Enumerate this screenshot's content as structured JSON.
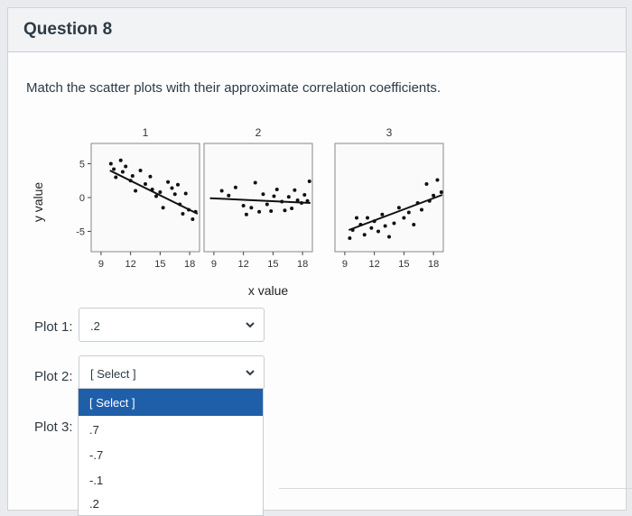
{
  "question": {
    "title": "Question 8",
    "prompt": "Match the scatter plots with their approximate correlation coefficients."
  },
  "chart_data": {
    "type": "scatter",
    "ylabel": "y value",
    "xlabel": "x value",
    "ylim": [
      -8,
      8
    ],
    "yticks": [
      "5",
      "0",
      "-5"
    ],
    "xticks": [
      "9",
      "12",
      "15",
      "18"
    ],
    "panels": [
      {
        "label": "1",
        "xlim": [
          8,
          19
        ],
        "points": [
          [
            10,
            5
          ],
          [
            10.3,
            4.2
          ],
          [
            10.5,
            3
          ],
          [
            11,
            5.5
          ],
          [
            11.2,
            3.8
          ],
          [
            11.5,
            4.6
          ],
          [
            12,
            2.5
          ],
          [
            12.2,
            3.2
          ],
          [
            12.5,
            1
          ],
          [
            13,
            4
          ],
          [
            13.5,
            2
          ],
          [
            14,
            3.1
          ],
          [
            14.2,
            1.2
          ],
          [
            14.6,
            0.2
          ],
          [
            15,
            0.8
          ],
          [
            15.3,
            -1.5
          ],
          [
            15.8,
            2.3
          ],
          [
            16.2,
            1.4
          ],
          [
            16.5,
            0.5
          ],
          [
            16.8,
            1.9
          ],
          [
            17,
            -1
          ],
          [
            17.3,
            -2.4
          ],
          [
            17.6,
            0.6
          ],
          [
            17.9,
            -1.8
          ],
          [
            18.3,
            -3.2
          ],
          [
            18.6,
            -2.1
          ]
        ],
        "trend": [
          [
            9.9,
            4
          ],
          [
            18.8,
            -2.4
          ]
        ]
      },
      {
        "label": "2",
        "xlim": [
          8,
          19
        ],
        "points": [
          [
            9.8,
            1
          ],
          [
            10.5,
            0.3
          ],
          [
            11.2,
            1.5
          ],
          [
            12,
            -1.2
          ],
          [
            12.3,
            -2.5
          ],
          [
            12.8,
            -1.5
          ],
          [
            13.2,
            2.2
          ],
          [
            13.6,
            -2.1
          ],
          [
            14,
            0.5
          ],
          [
            14.4,
            -1
          ],
          [
            14.8,
            -2
          ],
          [
            15.1,
            0.2
          ],
          [
            15.4,
            1.2
          ],
          [
            15.9,
            -0.6
          ],
          [
            16.2,
            -1.9
          ],
          [
            16.6,
            0.1
          ],
          [
            16.9,
            -1.6
          ],
          [
            17.2,
            1.1
          ],
          [
            17.5,
            -0.4
          ],
          [
            17.9,
            -0.8
          ],
          [
            18.2,
            0.4
          ],
          [
            18.5,
            -0.5
          ],
          [
            18.7,
            2.4
          ]
        ],
        "trend": [
          [
            8.6,
            -0.1
          ],
          [
            18.8,
            -0.8
          ]
        ]
      },
      {
        "label": "3",
        "xlim": [
          8,
          19
        ],
        "points": [
          [
            9.5,
            -6
          ],
          [
            9.8,
            -4.8
          ],
          [
            10.2,
            -3
          ],
          [
            10.6,
            -4
          ],
          [
            11,
            -5.5
          ],
          [
            11.3,
            -3
          ],
          [
            11.7,
            -4.5
          ],
          [
            12,
            -3.5
          ],
          [
            12.4,
            -5
          ],
          [
            12.8,
            -2.5
          ],
          [
            13.1,
            -4.2
          ],
          [
            13.5,
            -5.8
          ],
          [
            14,
            -3.8
          ],
          [
            14.5,
            -1.5
          ],
          [
            15,
            -3
          ],
          [
            15.5,
            -2.2
          ],
          [
            16,
            -4
          ],
          [
            16.4,
            -0.8
          ],
          [
            16.8,
            -1.8
          ],
          [
            17.3,
            2
          ],
          [
            17.6,
            -0.5
          ],
          [
            18,
            0.3
          ],
          [
            18.4,
            2.6
          ],
          [
            18.8,
            0.8
          ]
        ],
        "trend": [
          [
            9.4,
            -4.8
          ],
          [
            18.9,
            0.4
          ]
        ]
      }
    ]
  },
  "dropdowns": [
    {
      "label": "Plot 1:",
      "value": ".2"
    },
    {
      "label": "Plot 2:",
      "value": "[ Select ]"
    },
    {
      "label": "Plot 3:",
      "value": ""
    }
  ],
  "menu": {
    "options": [
      "[ Select ]",
      ".7",
      "-.7",
      "-.1",
      ".2"
    ],
    "highlighted": "[ Select ]"
  },
  "colors": {
    "highlight": "#1f5faa",
    "border": "#c7cdd1",
    "text": "#2d3b45"
  }
}
